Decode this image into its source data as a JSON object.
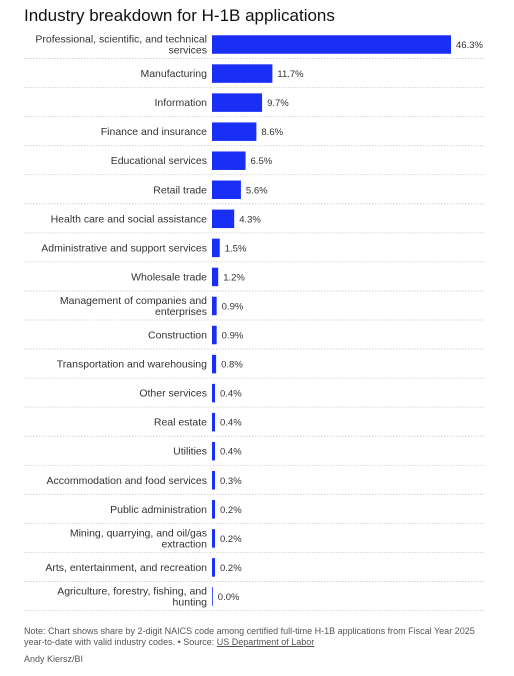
{
  "title": "Industry breakdown for H-1B applications",
  "note": {
    "text": "Note: Chart shows share by 2-digit NAICS code among certified full-time H-1B applications from Fiscal Year 2025 year-to-date with valid industry codes. • Source: ",
    "source_link": "US Department of Labor"
  },
  "credit": "Andy Kiersz/BI",
  "colors": {
    "bar": "#1a2ff5",
    "gridline": "#cccccc",
    "text": "#333333"
  },
  "chart_data": {
    "type": "bar",
    "orientation": "horizontal",
    "title": "Industry breakdown for H-1B applications",
    "xlim": [
      0,
      46.3
    ],
    "grid": false,
    "categories": [
      [
        "Professional, scientific, and technical",
        "services"
      ],
      [
        "Manufacturing"
      ],
      [
        "Information"
      ],
      [
        "Finance and insurance"
      ],
      [
        "Educational services"
      ],
      [
        "Retail trade"
      ],
      [
        "Health care and social assistance"
      ],
      [
        "Administrative and support services"
      ],
      [
        "Wholesale trade"
      ],
      [
        "Management of companies and",
        "enterprises"
      ],
      [
        "Construction"
      ],
      [
        "Transportation and warehousing"
      ],
      [
        "Other services"
      ],
      [
        "Real estate"
      ],
      [
        "Utilities"
      ],
      [
        "Accommodation and food services"
      ],
      [
        "Public administration"
      ],
      [
        "Mining, quarrying, and oil/gas",
        "extraction"
      ],
      [
        "Arts, entertainment, and recreation"
      ],
      [
        "Agriculture, forestry, fishing, and",
        "hunting"
      ]
    ],
    "values": [
      46.3,
      11.7,
      9.7,
      8.6,
      6.5,
      5.6,
      4.3,
      1.5,
      1.2,
      0.9,
      0.9,
      0.8,
      0.4,
      0.4,
      0.4,
      0.3,
      0.2,
      0.2,
      0.2,
      0.0
    ],
    "value_labels": [
      "46.3%",
      "11.7%",
      "9.7%",
      "8.6%",
      "6.5%",
      "5.6%",
      "4.3%",
      "1.5%",
      "1.2%",
      "0.9%",
      "0.9%",
      "0.8%",
      "0.4%",
      "0.4%",
      "0.4%",
      "0.3%",
      "0.2%",
      "0.2%",
      "0.2%",
      "0.0%"
    ]
  }
}
